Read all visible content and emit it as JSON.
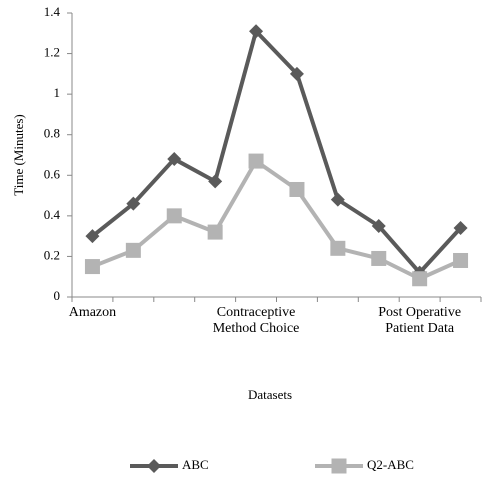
{
  "chart_data": {
    "type": "line",
    "categories": [
      "Amazon",
      null,
      null,
      null,
      "Contraceptive Method Choice",
      null,
      null,
      null,
      "Post Operative Patient Data",
      null
    ],
    "series": [
      {
        "name": "ABC",
        "color": "#5a5a5a",
        "marker": "diamond",
        "values": [
          0.3,
          0.46,
          0.68,
          0.57,
          1.31,
          1.1,
          0.48,
          0.35,
          0.12,
          0.34
        ]
      },
      {
        "name": "Q2-ABC",
        "color": "#b3b3b3",
        "marker": "square",
        "values": [
          0.15,
          0.23,
          0.4,
          0.32,
          0.67,
          0.53,
          0.24,
          0.19,
          0.09,
          0.18
        ]
      }
    ],
    "x_label": "Datasets",
    "y_label": "Time (Minutes)",
    "ylim": [
      0,
      1.4
    ],
    "yticks": [
      0,
      0.2,
      0.4,
      0.6,
      0.8,
      1,
      1.2,
      1.4
    ],
    "grid": false,
    "legend": "bottom"
  }
}
